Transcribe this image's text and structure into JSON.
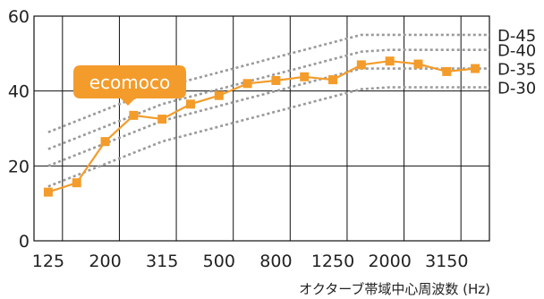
{
  "chart_data": {
    "type": "line",
    "xlabel": "オクターブ帯域中心周波数 (Hz)",
    "ylabel": "",
    "ylim": [
      0,
      60
    ],
    "y_ticks": [
      0,
      20,
      40,
      60
    ],
    "grid": true,
    "x_categories": [
      "125",
      "160",
      "200",
      "250",
      "315",
      "400",
      "500",
      "630",
      "800",
      "1000",
      "1250",
      "1600",
      "2000",
      "2500",
      "3150",
      "4000"
    ],
    "x_tick_labels": [
      {
        "index": 0,
        "label": "125"
      },
      {
        "index": 2,
        "label": "200"
      },
      {
        "index": 4,
        "label": "315"
      },
      {
        "index": 6,
        "label": "500"
      },
      {
        "index": 8,
        "label": "800"
      },
      {
        "index": 10,
        "label": "1250"
      },
      {
        "index": 12,
        "label": "2000"
      },
      {
        "index": 14,
        "label": "3150"
      }
    ],
    "series": [
      {
        "name": "ecomoco",
        "color": "#f39c2b",
        "values": [
          13,
          15.5,
          26.5,
          33.5,
          32.5,
          36.5,
          38.8,
          42,
          42.8,
          43.8,
          43,
          47,
          48,
          47.2,
          45.2,
          46
        ]
      }
    ],
    "reference_curves": [
      {
        "name": "D-45",
        "values": [
          29,
          32,
          35,
          38,
          41,
          43,
          45,
          47,
          49,
          51,
          53,
          55,
          55,
          55,
          55,
          55
        ]
      },
      {
        "name": "D-40",
        "values": [
          24.5,
          27.5,
          30.5,
          33.5,
          36.5,
          38.5,
          40.5,
          42.5,
          44.5,
          46.5,
          48.5,
          50.5,
          51,
          51,
          51,
          51
        ]
      },
      {
        "name": "D-35",
        "values": [
          20,
          23,
          26,
          29,
          32,
          34,
          36,
          38,
          40,
          42,
          44,
          46,
          46,
          46,
          46,
          46
        ]
      },
      {
        "name": "D-30",
        "values": [
          14.5,
          17.5,
          20.5,
          23.5,
          26.5,
          28.5,
          30.5,
          32.5,
          34.5,
          36.5,
          38.5,
          40.5,
          41,
          41,
          41,
          41
        ]
      }
    ],
    "colors": {
      "series": "#f39c2b",
      "callout": "#f39c2b",
      "reference": "#9a9a9a",
      "grid": "#111111"
    }
  }
}
